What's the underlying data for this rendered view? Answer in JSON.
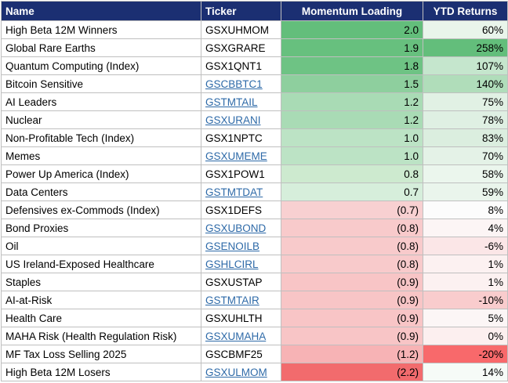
{
  "table": {
    "header": [
      "Name",
      "Ticker",
      "Momentum Loading",
      "YTD Returns"
    ],
    "rows": [
      {
        "name": "High Beta 12M Winners",
        "ticker": "GSXUHMOM",
        "link": false,
        "momentum": "2.0",
        "ytd": "60%",
        "momentum_color": "#63be7b",
        "ytd_color": "#e9f5eb"
      },
      {
        "name": "Global Rare Earths",
        "ticker": "GSXGRARE",
        "link": false,
        "momentum": "1.9",
        "ytd": "258%",
        "momentum_color": "#67c07e",
        "ytd_color": "#63be7b"
      },
      {
        "name": "Quantum Computing (Index)",
        "ticker": "GSX1QNT1",
        "link": false,
        "momentum": "1.8",
        "ytd": "107%",
        "momentum_color": "#6ec384",
        "ytd_color": "#c5e6cd"
      },
      {
        "name": "Bitcoin Sensitive",
        "ticker": "GSCBBTC1",
        "link": true,
        "momentum": "1.5",
        "ytd": "140%",
        "momentum_color": "#8ecf9e",
        "ytd_color": "#b0ddba"
      },
      {
        "name": "AI Leaders",
        "ticker": "GSTMTAIL",
        "link": true,
        "momentum": "1.2",
        "ytd": "75%",
        "momentum_color": "#a9dbb5",
        "ytd_color": "#e1f1e4"
      },
      {
        "name": "Nuclear",
        "ticker": "GSXURANI",
        "link": true,
        "momentum": "1.2",
        "ytd": "78%",
        "momentum_color": "#a9dbb5",
        "ytd_color": "#dff0e3"
      },
      {
        "name": "Non-Profitable Tech (Index)",
        "ticker": "GSX1NPTC",
        "link": false,
        "momentum": "1.0",
        "ytd": "83%",
        "momentum_color": "#bce3c5",
        "ytd_color": "#dbeedf"
      },
      {
        "name": "Memes",
        "ticker": "GSXUMEME",
        "link": true,
        "momentum": "1.0",
        "ytd": "70%",
        "momentum_color": "#bce3c5",
        "ytd_color": "#e4f2e7"
      },
      {
        "name": "Power Up America (Index)",
        "ticker": "GSX1POW1",
        "link": false,
        "momentum": "0.8",
        "ytd": "58%",
        "momentum_color": "#cdeacf",
        "ytd_color": "#ebf6ed"
      },
      {
        "name": "Data Centers",
        "ticker": "GSTMTDAT",
        "link": true,
        "momentum": "0.7",
        "ytd": "59%",
        "momentum_color": "#d6eedb",
        "ytd_color": "#eaf5ec"
      },
      {
        "name": "Defensives ex-Commods (Index)",
        "ticker": "GSX1DEFS",
        "link": false,
        "momentum": "(0.7)",
        "ytd": "8%",
        "momentum_color": "#f8d0d1",
        "ytd_color": "#fcfcfc"
      },
      {
        "name": "Bond Proxies",
        "ticker": "GSXUBOND",
        "link": true,
        "momentum": "(0.8)",
        "ytd": "4%",
        "momentum_color": "#f8cacb",
        "ytd_color": "#fcf5f5"
      },
      {
        "name": "Oil",
        "ticker": "GSENOILB",
        "link": true,
        "momentum": "(0.8)",
        "ytd": "-6%",
        "momentum_color": "#f8cacb",
        "ytd_color": "#fbe6e7"
      },
      {
        "name": "US Ireland-Exposed Healthcare",
        "ticker": "GSHLCIRL",
        "link": true,
        "momentum": "(0.8)",
        "ytd": "1%",
        "momentum_color": "#f8cacb",
        "ytd_color": "#fcf1f1"
      },
      {
        "name": "Staples",
        "ticker": "GSXUSTAP",
        "link": false,
        "momentum": "(0.9)",
        "ytd": "1%",
        "momentum_color": "#f8c5c6",
        "ytd_color": "#fcf1f1"
      },
      {
        "name": "AI-at-Risk",
        "ticker": "GSTMTAIR",
        "link": true,
        "momentum": "(0.9)",
        "ytd": "-10%",
        "momentum_color": "#f8c5c6",
        "ytd_color": "#f9cccd"
      },
      {
        "name": "Health Care",
        "ticker": "GSXUHLTH",
        "link": false,
        "momentum": "(0.9)",
        "ytd": "5%",
        "momentum_color": "#f8c5c6",
        "ytd_color": "#fcf6f6"
      },
      {
        "name": "MAHA Risk (Health Regulation Risk)",
        "ticker": "GSXUMAHA",
        "link": true,
        "momentum": "(0.9)",
        "ytd": "0%",
        "momentum_color": "#f8c5c6",
        "ytd_color": "#fcefef"
      },
      {
        "name": "MF Tax Loss Selling 2025",
        "ticker": "GSCBMF25",
        "link": false,
        "momentum": "(1.2)",
        "ytd": "-20%",
        "momentum_color": "#f7b3b5",
        "ytd_color": "#f8696b"
      },
      {
        "name": "High Beta 12M Losers",
        "ticker": "GSXULMOM",
        "link": true,
        "momentum": "(2.2)",
        "ytd": "14%",
        "momentum_color": "#f26b6d",
        "ytd_color": "#f6fbf7"
      }
    ]
  }
}
